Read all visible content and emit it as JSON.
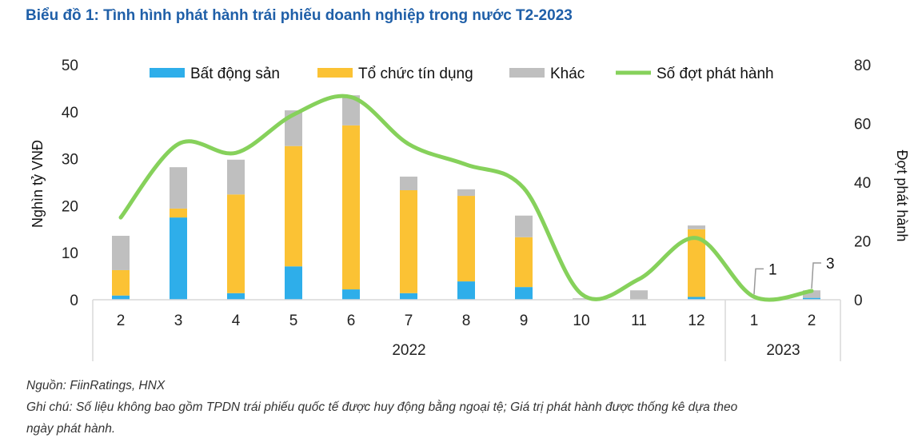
{
  "chart_data": {
    "type": "bar",
    "title": "Biểu đồ 1: Tình hình phát hành trái phiếu doanh nghiệp trong nước T2-2023",
    "categories": [
      "2",
      "3",
      "4",
      "5",
      "6",
      "7",
      "8",
      "9",
      "10",
      "11",
      "12",
      "1",
      "2"
    ],
    "year_groups": [
      {
        "label": "2022",
        "count": 11
      },
      {
        "label": "2023",
        "count": 2
      }
    ],
    "ylabel": "Nghìn tỷ VNĐ",
    "y2label": "Đợt phát hành",
    "ylim": [
      0,
      50
    ],
    "y2lim": [
      0,
      80
    ],
    "yticks": [
      0,
      10,
      20,
      30,
      40,
      50
    ],
    "y2ticks": [
      0,
      20,
      40,
      60,
      80
    ],
    "legend_position": "top",
    "grid": false,
    "series": [
      {
        "name": "Bất động sản",
        "kind": "bar",
        "color": "#2eaeea",
        "values": [
          0.9,
          17.5,
          1.4,
          7.1,
          2.2,
          1.4,
          3.9,
          2.7,
          0,
          0,
          0.6,
          0,
          0.4
        ]
      },
      {
        "name": "Tổ chức tín dụng",
        "kind": "bar",
        "color": "#fbc234",
        "values": [
          5.4,
          1.9,
          21.0,
          25.6,
          34.9,
          21.9,
          18.2,
          10.6,
          0,
          0.1,
          14.4,
          0,
          0
        ]
      },
      {
        "name": "Khác",
        "kind": "bar",
        "color": "#bfbfbf",
        "values": [
          7.3,
          8.8,
          7.4,
          7.6,
          6.4,
          2.9,
          1.4,
          4.6,
          0.3,
          1.9,
          0.8,
          0,
          1.6
        ]
      },
      {
        "name": "Số đợt phát hành",
        "kind": "line",
        "axis": "right",
        "color": "#86d15b",
        "values": [
          28,
          53,
          50,
          63,
          69,
          53,
          46,
          38,
          2,
          7,
          21,
          1,
          3
        ]
      }
    ],
    "annotations": [
      {
        "category_index": 11,
        "label": "1"
      },
      {
        "category_index": 12,
        "label": "3"
      }
    ]
  },
  "notes": {
    "source": "Nguồn: FiinRatings, HNX",
    "note_line1": "Ghi chú: Số liệu không bao gồm TPDN trái phiếu quốc tế được huy động bằng ngoại tệ; Giá trị phát hành được thống kê dựa theo",
    "note_line2": "ngày phát hành."
  }
}
